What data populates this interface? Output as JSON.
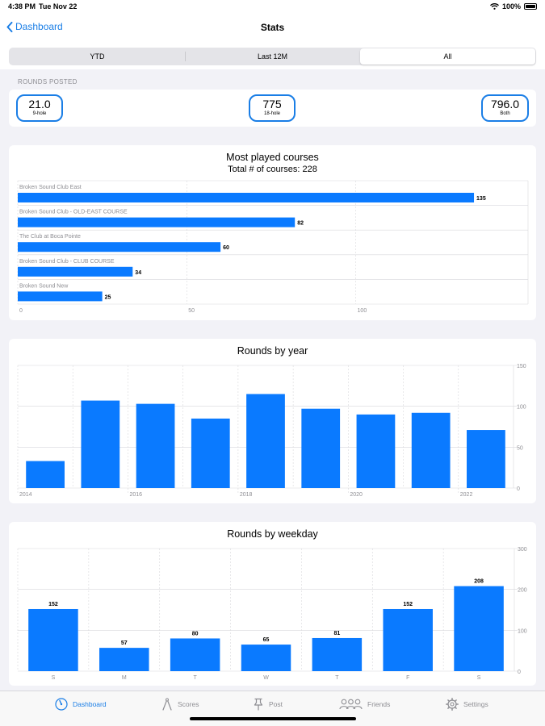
{
  "status": {
    "time": "4:38 PM",
    "date": "Tue Nov 22",
    "battery": "100%"
  },
  "nav": {
    "back_label": "Dashboard",
    "title": "Stats"
  },
  "segments": [
    {
      "label": "YTD",
      "active": false
    },
    {
      "label": "Last 12M",
      "active": false
    },
    {
      "label": "All",
      "active": true
    }
  ],
  "rounds": {
    "section_label": "ROUNDS POSTED",
    "nine_hole": {
      "value": "21.0",
      "label": "9-hole"
    },
    "eighteen_hole": {
      "value": "775",
      "label": "18-hole"
    },
    "both": {
      "value": "796.0",
      "label": "Both"
    }
  },
  "colors": {
    "accent": "#1a7ee6",
    "bar": "#0a7aff"
  },
  "charts": {
    "courses": {
      "title": "Most played courses",
      "subtitle": "Total # of courses: 228",
      "chart_data": {
        "type": "bar",
        "orientation": "horizontal",
        "categories": [
          "Broken Sound Club East",
          "Broken Sound Club - OLD-EAST COURSE",
          "The Club at Boca Pointe",
          "Broken Sound Club - CLUB COURSE",
          "Broken Sound New"
        ],
        "values": [
          135,
          82,
          60,
          34,
          25
        ],
        "xlim": [
          0,
          151
        ],
        "xticks": [
          0,
          50,
          100
        ],
        "grid": true
      }
    },
    "year": {
      "title": "Rounds by year",
      "chart_data": {
        "type": "bar",
        "x": [
          2014,
          2015,
          2016,
          2017,
          2018,
          2019,
          2020,
          2021,
          2022
        ],
        "values": [
          33,
          107,
          103,
          85,
          115,
          97,
          90,
          92,
          71
        ],
        "xticks": [
          "2014",
          "2016",
          "2018",
          "2020",
          "2022"
        ],
        "yticks": [
          0,
          50,
          100,
          150
        ],
        "ylim": [
          0,
          150
        ],
        "grid": true
      }
    },
    "weekday": {
      "title": "Rounds by weekday",
      "chart_data": {
        "type": "bar",
        "categories": [
          "S",
          "M",
          "T",
          "W",
          "T",
          "F",
          "S"
        ],
        "values": [
          152,
          57,
          80,
          65,
          81,
          152,
          208
        ],
        "yticks": [
          0,
          100,
          200,
          300
        ],
        "ylim": [
          0,
          300
        ],
        "grid": true
      }
    }
  },
  "tabs": [
    {
      "label": "Dashboard",
      "icon": "gauge-icon",
      "active": true
    },
    {
      "label": "Scores",
      "icon": "compass-icon",
      "active": false
    },
    {
      "label": "Post",
      "icon": "pin-icon",
      "active": false
    },
    {
      "label": "Friends",
      "icon": "people-icon",
      "active": false
    },
    {
      "label": "Settings",
      "icon": "gear-icon",
      "active": false
    }
  ]
}
